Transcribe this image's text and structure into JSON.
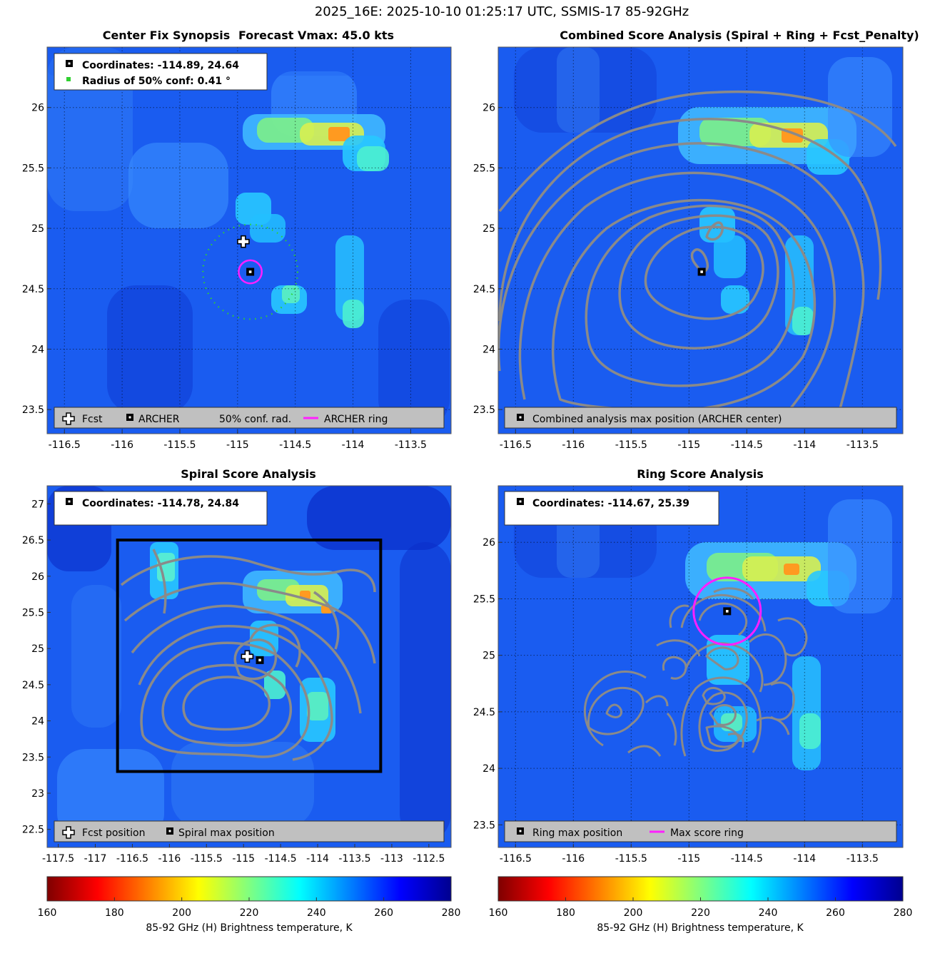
{
  "figure_title": "2025_16E: 2025-10-10 01:25:17 UTC, SSMIS-17 85-92GHz",
  "colors": {
    "ring": "#ff20ff",
    "contour": "#8a8a8a",
    "legend_bg": "#c0c0c0",
    "conf_dots": "#30d030",
    "colormap": [
      "#7f0000",
      "#ff0000",
      "#ff7f00",
      "#ffff00",
      "#80ff80",
      "#00ffff",
      "#0080ff",
      "#0000ff",
      "#00008f"
    ]
  },
  "chart_data": [
    {
      "id": "center_fix",
      "type": "heatmap",
      "title_left": "Center Fix Synopsis",
      "title_right": "Forecast Vmax: 45.0 kts",
      "xlim": [
        -116.65,
        -113.15
      ],
      "ylim": [
        23.3,
        26.5
      ],
      "xticks": [
        -116.5,
        -116,
        -115.5,
        -115,
        -114.5,
        -114,
        -113.5
      ],
      "yticks": [
        23.5,
        24,
        24.5,
        25,
        25.5,
        26
      ],
      "info_lines": [
        "Coordinates: -114.89, 24.64",
        "Radius of 50% conf: 0.41 °"
      ],
      "markers": {
        "fcst": [
          -114.95,
          24.89
        ],
        "archer": [
          -114.89,
          24.64
        ]
      },
      "archer_ring": {
        "center": [
          -114.89,
          24.64
        ],
        "radius_deg": 0.1
      },
      "conf_circle": {
        "center": [
          -114.89,
          24.64
        ],
        "radius_deg": 0.41
      },
      "legend": [
        "Fcst",
        "ARCHER",
        "50% conf. rad.",
        "ARCHER ring"
      ]
    },
    {
      "id": "combined",
      "type": "heatmap",
      "title": "Combined Score Analysis (Spiral + Ring + Fcst_Penalty)",
      "xlim": [
        -116.65,
        -113.15
      ],
      "ylim": [
        23.3,
        26.5
      ],
      "xticks": [
        -116.5,
        -116,
        -115.5,
        -115,
        -114.5,
        -114,
        -113.5
      ],
      "yticks": [
        23.5,
        24,
        24.5,
        25,
        25.5,
        26
      ],
      "markers": {
        "archer": [
          -114.89,
          24.64
        ]
      },
      "legend": [
        "Combined analysis max position (ARCHER center)"
      ]
    },
    {
      "id": "spiral",
      "type": "heatmap",
      "title": "Spiral Score Analysis",
      "xlim": [
        -117.65,
        -112.2
      ],
      "ylim": [
        22.25,
        27.25
      ],
      "xticks": [
        -117.5,
        -117,
        -116.5,
        -116,
        -115.5,
        -115,
        -114.5,
        -114,
        -113.5,
        -113,
        -112.5
      ],
      "yticks": [
        22.5,
        23,
        23.5,
        24,
        24.5,
        25,
        25.5,
        26,
        26.5,
        27
      ],
      "info_lines": [
        "Coordinates: -114.78, 24.84"
      ],
      "markers": {
        "fcst": [
          -114.95,
          24.89
        ],
        "spiral": [
          -114.78,
          24.84
        ]
      },
      "search_box": {
        "x": [
          -116.7,
          -113.15
        ],
        "y": [
          23.3,
          26.5
        ]
      },
      "legend": [
        "Fcst position",
        "Spiral max position"
      ]
    },
    {
      "id": "ring",
      "type": "heatmap",
      "title": "Ring Score Analysis",
      "xlim": [
        -116.65,
        -113.15
      ],
      "ylim": [
        23.3,
        26.5
      ],
      "xticks": [
        -116.5,
        -116,
        -115.5,
        -115,
        -114.5,
        -114,
        -113.5
      ],
      "yticks": [
        23.5,
        24,
        24.5,
        25,
        25.5,
        26
      ],
      "info_lines": [
        "Coordinates: -114.67, 25.39"
      ],
      "markers": {
        "ring": [
          -114.67,
          25.39
        ]
      },
      "max_ring": {
        "center": [
          -114.67,
          25.39
        ],
        "radius_deg": 0.29
      },
      "legend": [
        "Ring max position",
        "Max score ring"
      ]
    }
  ],
  "colorbar": {
    "ticks": [
      160,
      180,
      200,
      220,
      240,
      260,
      280
    ],
    "label": "85-92 GHz (H) Brightness temperature, K",
    "range": [
      160,
      280
    ]
  }
}
